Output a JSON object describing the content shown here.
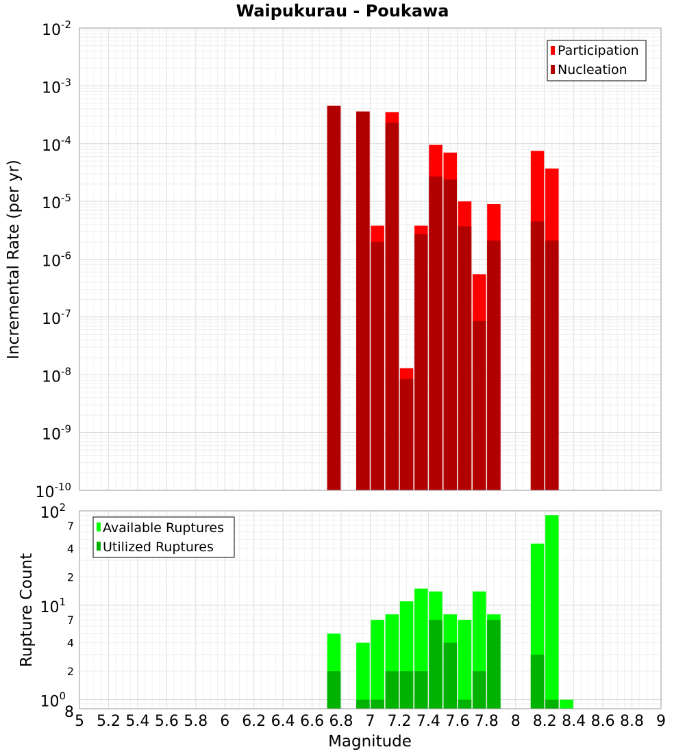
{
  "chart_data": {
    "type": "bar",
    "title": "Waipukurau - Poukawa",
    "xlabel": "Magnitude",
    "xlim": [
      5,
      9
    ],
    "x_ticks": [
      "5",
      "5.2",
      "5.4",
      "5.6",
      "5.8",
      "6",
      "6.2",
      "6.4",
      "6.6",
      "6.8",
      "7",
      "7.2",
      "7.4",
      "7.6",
      "7.8",
      "8",
      "8.2",
      "8.4",
      "8.6",
      "8.8",
      "9"
    ],
    "top_panel": {
      "ylabel": "Incremental Rate (per yr)",
      "yscale": "log",
      "ylim": [
        1e-10,
        0.01
      ],
      "tick_base": "10",
      "tick_exponents": [
        "-10",
        "-9",
        "-8",
        "-7",
        "-6",
        "-5",
        "-4",
        "-3",
        "-2"
      ],
      "legend": [
        {
          "name": "Participation",
          "color": "#ff0000"
        },
        {
          "name": "Nucleation",
          "color": "#b20000"
        }
      ],
      "series": [
        {
          "name": "Participation",
          "color": "#ff0000",
          "x": [
            6.75,
            6.95,
            7.05,
            7.15,
            7.25,
            7.35,
            7.45,
            7.55,
            7.65,
            7.75,
            7.85,
            8.15,
            8.25
          ],
          "values": [
            0.00045,
            0.00036,
            3.8e-06,
            0.00035,
            1.3e-08,
            3.8e-06,
            9.5e-05,
            7e-05,
            1e-05,
            5.5e-07,
            9e-06,
            7.5e-05,
            3.7e-05
          ]
        },
        {
          "name": "Nucleation",
          "color": "#b20000",
          "x": [
            6.75,
            6.95,
            7.05,
            7.15,
            7.25,
            7.35,
            7.45,
            7.55,
            7.65,
            7.75,
            7.85,
            8.15,
            8.25
          ],
          "values": [
            0.00045,
            0.00036,
            2e-06,
            0.00023,
            8.5e-09,
            2.7e-06,
            2.7e-05,
            2.4e-05,
            3.7e-06,
            8.5e-08,
            2.1e-06,
            4.5e-06,
            2.1e-06
          ]
        }
      ]
    },
    "bottom_panel": {
      "ylabel": "Rupture Count",
      "yscale": "log",
      "ylim": [
        0.8,
        100
      ],
      "tick_labels": [
        {
          "value": 1,
          "base": "10",
          "exp": "0"
        },
        {
          "value": 10,
          "base": "10",
          "exp": "1"
        },
        {
          "value": 100,
          "base": "10",
          "exp": "2"
        }
      ],
      "minor_tick_labels": [
        {
          "value": 0.8,
          "label": "8"
        },
        {
          "value": 2,
          "label": "2"
        },
        {
          "value": 4,
          "label": "4"
        },
        {
          "value": 7,
          "label": "7"
        },
        {
          "value": 20,
          "label": "2"
        },
        {
          "value": 40,
          "label": "4"
        },
        {
          "value": 70,
          "label": "7"
        }
      ],
      "legend": [
        {
          "name": "Available Ruptures",
          "color": "#00ff00"
        },
        {
          "name": "Utilized Ruptures",
          "color": "#00b200"
        }
      ],
      "series": [
        {
          "name": "Available Ruptures",
          "color": "#00ff00",
          "x": [
            6.75,
            6.95,
            7.05,
            7.15,
            7.25,
            7.35,
            7.45,
            7.55,
            7.65,
            7.75,
            7.85,
            8.15,
            8.25,
            8.35
          ],
          "values": [
            5,
            4,
            7,
            8,
            11,
            15,
            14,
            8,
            7,
            14,
            8,
            45,
            90,
            1
          ]
        },
        {
          "name": "Utilized Ruptures",
          "color": "#00b200",
          "x": [
            6.75,
            6.95,
            7.05,
            7.15,
            7.25,
            7.35,
            7.45,
            7.55,
            7.65,
            7.75,
            7.85,
            8.15,
            8.25
          ],
          "values": [
            2,
            1,
            1,
            2,
            2,
            2,
            7,
            4,
            1,
            2,
            7,
            3,
            1
          ]
        }
      ]
    }
  }
}
